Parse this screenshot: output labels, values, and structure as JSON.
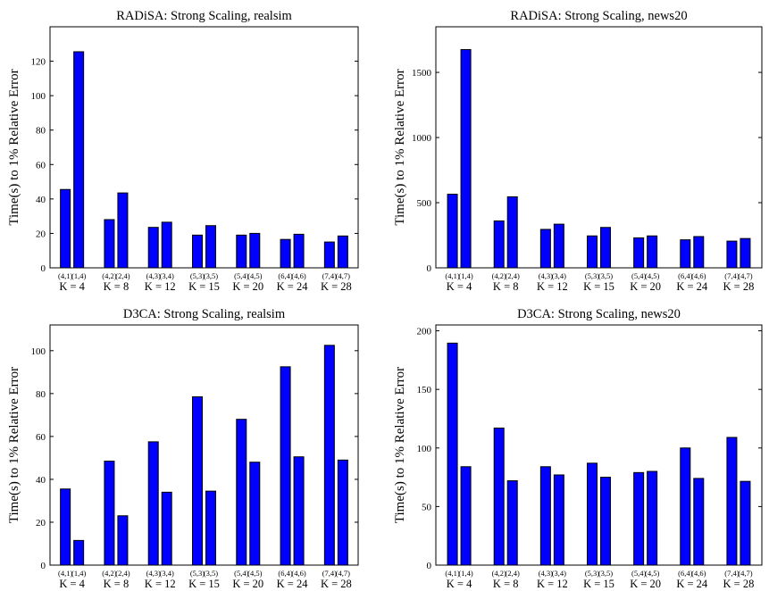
{
  "charts": [
    {
      "type": "bar",
      "title": "RADiSA: Strong Scaling, realsim",
      "ylabel": "Time(s) to 1% Relative Error",
      "ylim": [
        0,
        140
      ],
      "yticks": [
        0,
        20,
        40,
        60,
        80,
        100,
        120
      ],
      "categories": [
        "(4,1)",
        "(1,4)",
        "(4,2)",
        "(2,4)",
        "(4,3)",
        "(3,4)",
        "(5,3)",
        "(3,5)",
        "(5,4)",
        "(4,5)",
        "(6,4)",
        "(4,6)",
        "(7,4)",
        "(4,7)"
      ],
      "groups": [
        "K = 4",
        "K = 8",
        "K = 12",
        "K = 15",
        "K = 20",
        "K = 24",
        "K = 28"
      ],
      "values": [
        45.5,
        125.5,
        28,
        43.5,
        23.5,
        26.5,
        19,
        24.5,
        19,
        20,
        16.5,
        19.5,
        15,
        18.5
      ],
      "bar_color": "#0000ff"
    },
    {
      "type": "bar",
      "title": "RADiSA: Strong Scaling, news20",
      "ylabel": "Time(s) to 1% Relative Error",
      "ylim": [
        0,
        1850
      ],
      "yticks": [
        0,
        500,
        1000,
        1500
      ],
      "categories": [
        "(4,1)",
        "(1,4)",
        "(4,2)",
        "(2,4)",
        "(4,3)",
        "(3,4)",
        "(5,3)",
        "(3,5)",
        "(5,4)",
        "(4,5)",
        "(6,4)",
        "(4,6)",
        "(7,4)",
        "(4,7)"
      ],
      "groups": [
        "K = 4",
        "K = 8",
        "K = 12",
        "K = 15",
        "K = 20",
        "K = 24",
        "K = 28"
      ],
      "values": [
        565,
        1675,
        360,
        545,
        295,
        335,
        245,
        310,
        230,
        245,
        215,
        240,
        205,
        225
      ],
      "bar_color": "#0000ff"
    },
    {
      "type": "bar",
      "title": "D3CA: Strong Scaling, realsim",
      "ylabel": "Time(s) to 1% Relative Error",
      "ylim": [
        0,
        112
      ],
      "yticks": [
        0,
        20,
        40,
        60,
        80,
        100
      ],
      "categories": [
        "(4,1)",
        "(1,4)",
        "(4,2)",
        "(2,4)",
        "(4,3)",
        "(3,4)",
        "(5,3)",
        "(3,5)",
        "(5,4)",
        "(4,5)",
        "(6,4)",
        "(4,6)",
        "(7,4)",
        "(4,7)"
      ],
      "groups": [
        "K = 4",
        "K = 8",
        "K = 12",
        "K = 15",
        "K = 20",
        "K = 24",
        "K = 28"
      ],
      "values": [
        35.5,
        11.5,
        48.5,
        23,
        57.5,
        34,
        78.5,
        34.5,
        68,
        48,
        92.5,
        50.5,
        102.5,
        49
      ],
      "bar_color": "#0000ff"
    },
    {
      "type": "bar",
      "title": "D3CA: Strong Scaling, news20",
      "ylabel": "Time(s) to 1% Relative Error",
      "ylim": [
        0,
        205
      ],
      "yticks": [
        0,
        50,
        100,
        150,
        200
      ],
      "categories": [
        "(4,1)",
        "(1,4)",
        "(4,2)",
        "(2,4)",
        "(4,3)",
        "(3,4)",
        "(5,3)",
        "(3,5)",
        "(5,4)",
        "(4,5)",
        "(6,4)",
        "(4,6)",
        "(7,4)",
        "(4,7)"
      ],
      "groups": [
        "K = 4",
        "K = 8",
        "K = 12",
        "K = 15",
        "K = 20",
        "K = 24",
        "K = 28"
      ],
      "values": [
        189.5,
        84,
        117,
        72,
        84,
        77,
        87,
        75,
        79,
        80,
        100,
        74,
        109,
        71.5
      ],
      "bar_color": "#0000ff"
    }
  ]
}
